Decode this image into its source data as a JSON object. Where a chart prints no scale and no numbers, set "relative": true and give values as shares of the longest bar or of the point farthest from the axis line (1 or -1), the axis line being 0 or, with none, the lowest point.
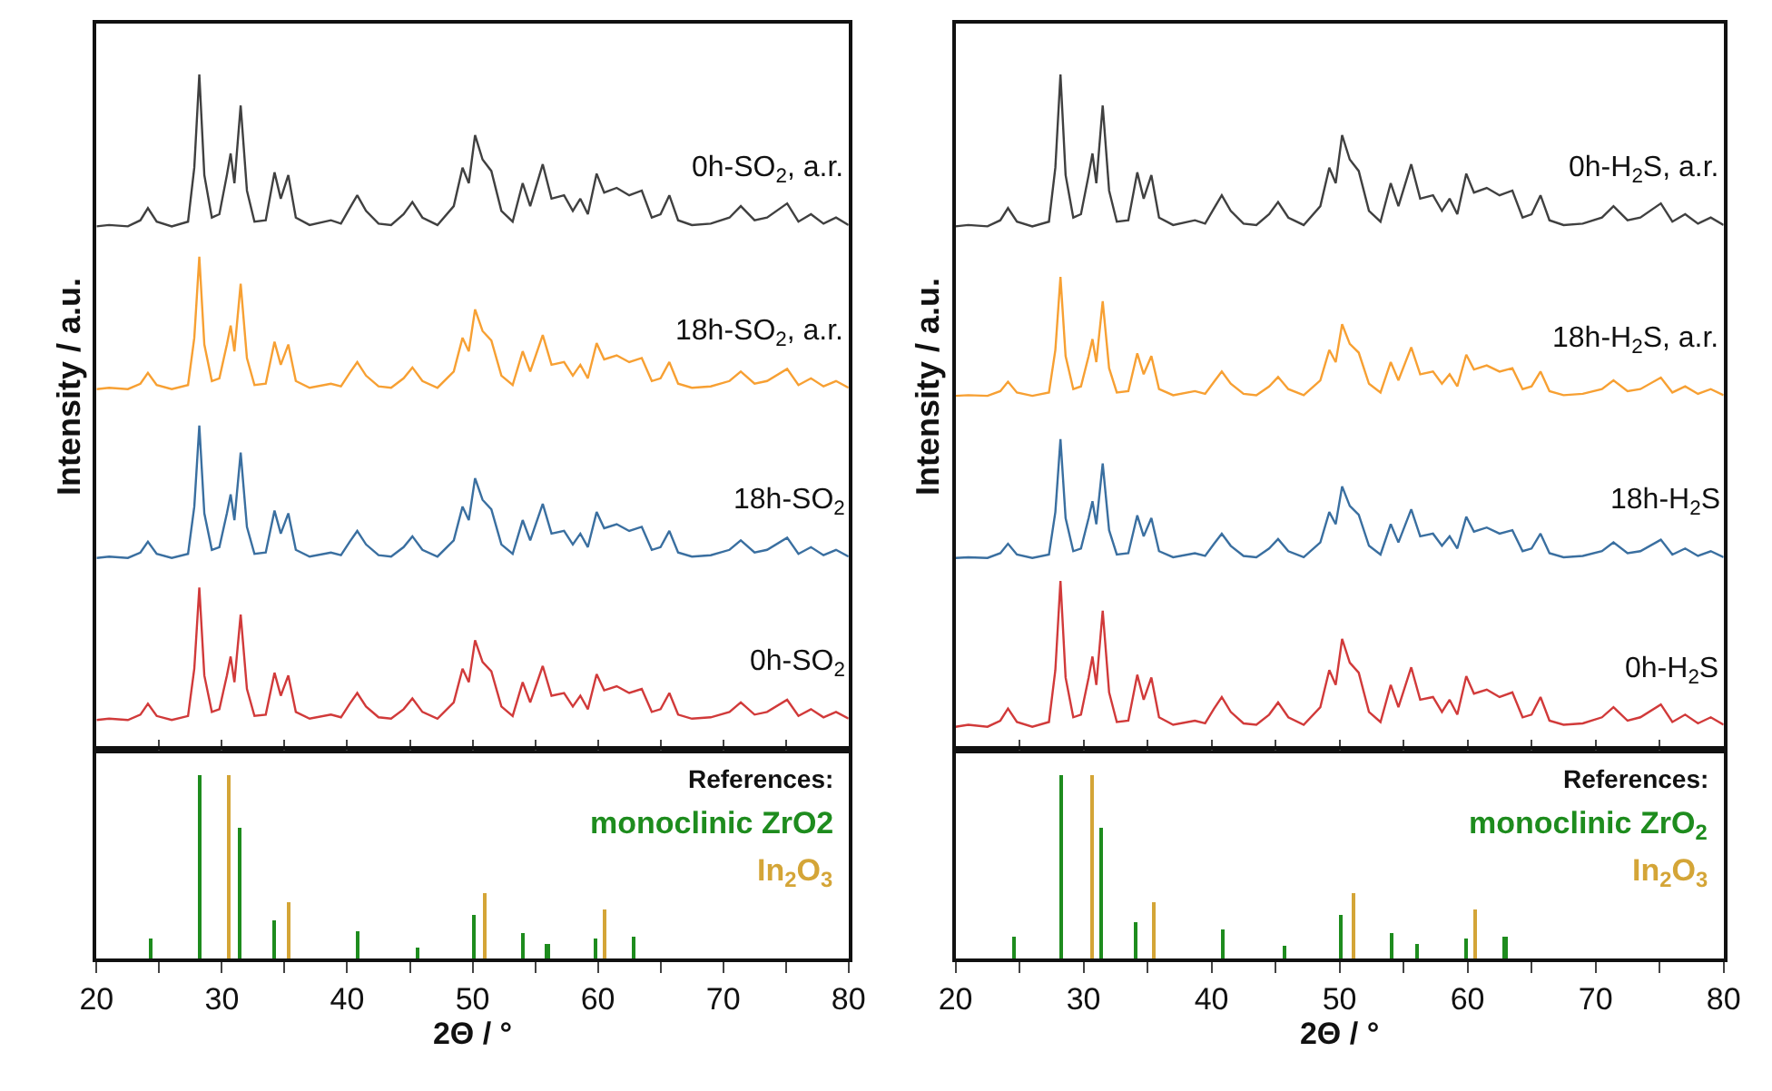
{
  "chart_data": [
    {
      "type": "line",
      "relative": true,
      "ylabel": "Intensity / a.u.",
      "tick_labels": false,
      "xlim": [
        20,
        80
      ],
      "xticks": [
        20,
        {
          "value": 25,
          "label": null
        },
        30,
        {
          "value": 35,
          "label": null
        },
        40,
        {
          "value": 45,
          "label": null
        },
        50,
        {
          "value": 55,
          "label": null
        },
        60,
        {
          "value": 65,
          "label": null
        },
        70,
        {
          "value": 75,
          "label": null
        },
        80
      ],
      "x": [
        20,
        21,
        22.5,
        23.5,
        24.1,
        24.8,
        26,
        27.3,
        27.8,
        28.2,
        28.6,
        29.2,
        29.8,
        30.4,
        30.7,
        31.0,
        31.5,
        32.0,
        32.6,
        33.5,
        34.2,
        34.7,
        35.3,
        35.9,
        37,
        38.7,
        39.5,
        40.2,
        40.8,
        41.5,
        42.5,
        43.5,
        44.5,
        45.2,
        46,
        47.2,
        48.5,
        49.2,
        49.7,
        50.2,
        50.8,
        51.5,
        52.3,
        53.2,
        54.0,
        54.6,
        55.6,
        56.3,
        57.3,
        58,
        58.6,
        59.2,
        59.9,
        60.5,
        61.5,
        62.5,
        63.5,
        64.3,
        65.0,
        65.7,
        66.4,
        67.5,
        69,
        70.5,
        71.4,
        72.5,
        73.5,
        75.1,
        76,
        77,
        78,
        79,
        80
      ],
      "series": [
        {
          "name": "0h-SO$_{2}$, a.r.",
          "color": "#404040",
          "values": [
            0.775,
            0.777,
            0.775,
            0.784,
            0.802,
            0.782,
            0.775,
            0.782,
            0.862,
            1.0,
            0.851,
            0.788,
            0.793,
            0.851,
            0.883,
            0.839,
            0.954,
            0.828,
            0.782,
            0.784,
            0.855,
            0.816,
            0.851,
            0.788,
            0.777,
            0.784,
            0.779,
            0.802,
            0.821,
            0.798,
            0.779,
            0.777,
            0.793,
            0.811,
            0.788,
            0.777,
            0.805,
            0.862,
            0.839,
            0.91,
            0.874,
            0.857,
            0.798,
            0.782,
            0.839,
            0.805,
            0.867,
            0.816,
            0.821,
            0.798,
            0.816,
            0.793,
            0.853,
            0.825,
            0.832,
            0.821,
            0.828,
            0.788,
            0.793,
            0.821,
            0.784,
            0.777,
            0.779,
            0.788,
            0.805,
            0.784,
            0.788,
            0.809,
            0.782,
            0.793,
            0.779,
            0.788,
            0.777
          ]
        },
        {
          "name": "18h-SO$_{2}$, a.r.",
          "color": "#f7a033",
          "values": [
            0.534,
            0.536,
            0.534,
            0.542,
            0.558,
            0.54,
            0.534,
            0.54,
            0.61,
            0.73,
            0.6,
            0.546,
            0.55,
            0.6,
            0.628,
            0.59,
            0.69,
            0.58,
            0.54,
            0.542,
            0.604,
            0.57,
            0.6,
            0.546,
            0.536,
            0.542,
            0.538,
            0.558,
            0.574,
            0.554,
            0.538,
            0.536,
            0.55,
            0.566,
            0.546,
            0.536,
            0.56,
            0.61,
            0.59,
            0.652,
            0.62,
            0.606,
            0.554,
            0.54,
            0.59,
            0.56,
            0.614,
            0.57,
            0.574,
            0.554,
            0.57,
            0.55,
            0.602,
            0.578,
            0.584,
            0.574,
            0.58,
            0.546,
            0.55,
            0.574,
            0.542,
            0.536,
            0.538,
            0.546,
            0.56,
            0.542,
            0.546,
            0.564,
            0.54,
            0.55,
            0.538,
            0.546,
            0.536
          ]
        },
        {
          "name": "18h-SO$_{2}$",
          "color": "#3a6fa0",
          "values": [
            0.284,
            0.286,
            0.284,
            0.292,
            0.308,
            0.29,
            0.284,
            0.29,
            0.36,
            0.48,
            0.35,
            0.296,
            0.3,
            0.35,
            0.378,
            0.34,
            0.44,
            0.33,
            0.29,
            0.292,
            0.354,
            0.32,
            0.35,
            0.296,
            0.286,
            0.292,
            0.288,
            0.308,
            0.324,
            0.304,
            0.288,
            0.286,
            0.3,
            0.316,
            0.296,
            0.286,
            0.31,
            0.36,
            0.34,
            0.402,
            0.37,
            0.356,
            0.304,
            0.29,
            0.34,
            0.31,
            0.364,
            0.32,
            0.324,
            0.304,
            0.32,
            0.3,
            0.352,
            0.328,
            0.334,
            0.324,
            0.33,
            0.296,
            0.3,
            0.324,
            0.292,
            0.286,
            0.288,
            0.296,
            0.31,
            0.292,
            0.296,
            0.314,
            0.29,
            0.3,
            0.288,
            0.296,
            0.286
          ]
        },
        {
          "name": "0h-SO$_{2}$",
          "color": "#d13a3a",
          "values": [
            0.044,
            0.046,
            0.044,
            0.052,
            0.068,
            0.05,
            0.044,
            0.05,
            0.12,
            0.24,
            0.11,
            0.056,
            0.06,
            0.11,
            0.138,
            0.1,
            0.2,
            0.09,
            0.05,
            0.052,
            0.114,
            0.08,
            0.11,
            0.056,
            0.046,
            0.052,
            0.048,
            0.068,
            0.084,
            0.064,
            0.048,
            0.046,
            0.06,
            0.076,
            0.056,
            0.046,
            0.07,
            0.12,
            0.1,
            0.162,
            0.13,
            0.116,
            0.064,
            0.05,
            0.1,
            0.07,
            0.124,
            0.08,
            0.084,
            0.064,
            0.08,
            0.06,
            0.112,
            0.088,
            0.094,
            0.084,
            0.09,
            0.056,
            0.06,
            0.084,
            0.052,
            0.046,
            0.048,
            0.056,
            0.07,
            0.052,
            0.056,
            0.074,
            0.05,
            0.06,
            0.048,
            0.056,
            0.046
          ]
        }
      ]
    },
    {
      "type": "bar",
      "relative": true,
      "xlabel": "2Θ / °",
      "tick_labels": "x",
      "legend_title": "References:",
      "xlim": [
        20,
        80
      ],
      "xticks": [
        20,
        {
          "value": 25,
          "label": null
        },
        30,
        {
          "value": 35,
          "label": null
        },
        40,
        {
          "value": 45,
          "label": null
        },
        50,
        {
          "value": 55,
          "label": null
        },
        60,
        {
          "value": 65,
          "label": null
        },
        70,
        {
          "value": 75,
          "label": null
        },
        80
      ],
      "series": [
        {
          "name": "monoclinic ZrO2",
          "color": "#1e8c1e",
          "x": [
            24.4,
            28.2,
            31.5,
            34.2,
            40.8,
            45.6,
            50.1,
            54.1,
            56.0,
            59.8,
            62.9
          ],
          "values": [
            0.11,
            1.0,
            0.71,
            0.21,
            0.15,
            0.06,
            0.24,
            0.14,
            0.08,
            0.11,
            0.12
          ]
        },
        {
          "name": "In$_{2}$O$_{3}$",
          "color": "#d4a537",
          "x": [
            30.6,
            35.4,
            51.0,
            60.6
          ],
          "values": [
            1.0,
            0.31,
            0.36,
            0.27
          ]
        }
      ]
    },
    {
      "type": "line",
      "relative": true,
      "ylabel": "Intensity / a.u.",
      "tick_labels": false,
      "xlim": [
        20,
        80
      ],
      "xticks": [
        20,
        {
          "value": 25,
          "label": null
        },
        30,
        {
          "value": 35,
          "label": null
        },
        40,
        {
          "value": 45,
          "label": null
        },
        50,
        {
          "value": 55,
          "label": null
        },
        60,
        {
          "value": 65,
          "label": null
        },
        70,
        {
          "value": 75,
          "label": null
        },
        80
      ],
      "x": [
        20,
        21,
        22.5,
        23.5,
        24.1,
        24.8,
        26,
        27.3,
        27.8,
        28.2,
        28.6,
        29.2,
        29.8,
        30.4,
        30.7,
        31.0,
        31.5,
        32.0,
        32.6,
        33.5,
        34.2,
        34.7,
        35.3,
        35.9,
        37,
        38.7,
        39.5,
        40.2,
        40.8,
        41.5,
        42.5,
        43.5,
        44.5,
        45.2,
        46,
        47.2,
        48.5,
        49.2,
        49.7,
        50.2,
        50.8,
        51.5,
        52.3,
        53.2,
        54.0,
        54.6,
        55.6,
        56.3,
        57.3,
        58,
        58.6,
        59.2,
        59.9,
        60.5,
        61.5,
        62.5,
        63.5,
        64.3,
        65.0,
        65.7,
        66.4,
        67.5,
        69,
        70.5,
        71.4,
        72.5,
        73.5,
        75.1,
        76,
        77,
        78,
        79,
        80
      ],
      "series": [
        {
          "name": "0h-H$_{2}$S, a.r.",
          "color": "#404040",
          "values": [
            0.775,
            0.777,
            0.775,
            0.784,
            0.802,
            0.782,
            0.775,
            0.782,
            0.862,
            1.0,
            0.851,
            0.788,
            0.793,
            0.851,
            0.883,
            0.839,
            0.954,
            0.828,
            0.782,
            0.784,
            0.855,
            0.816,
            0.851,
            0.788,
            0.777,
            0.784,
            0.779,
            0.802,
            0.821,
            0.798,
            0.779,
            0.777,
            0.793,
            0.811,
            0.788,
            0.777,
            0.805,
            0.862,
            0.839,
            0.91,
            0.874,
            0.857,
            0.798,
            0.782,
            0.839,
            0.805,
            0.867,
            0.816,
            0.821,
            0.798,
            0.816,
            0.793,
            0.853,
            0.825,
            0.832,
            0.821,
            0.828,
            0.788,
            0.793,
            0.821,
            0.784,
            0.777,
            0.779,
            0.788,
            0.805,
            0.784,
            0.788,
            0.809,
            0.782,
            0.793,
            0.779,
            0.788,
            0.777
          ]
        },
        {
          "name": "18h-H$_{2}$S, a.r.",
          "color": "#f7a033",
          "values": [
            0.524,
            0.525,
            0.524,
            0.531,
            0.545,
            0.529,
            0.524,
            0.529,
            0.592,
            0.7,
            0.583,
            0.534,
            0.538,
            0.583,
            0.608,
            0.574,
            0.664,
            0.565,
            0.529,
            0.531,
            0.587,
            0.556,
            0.583,
            0.534,
            0.525,
            0.531,
            0.527,
            0.545,
            0.56,
            0.542,
            0.527,
            0.525,
            0.538,
            0.552,
            0.534,
            0.525,
            0.547,
            0.592,
            0.574,
            0.63,
            0.601,
            0.588,
            0.542,
            0.529,
            0.574,
            0.547,
            0.596,
            0.556,
            0.56,
            0.542,
            0.556,
            0.538,
            0.585,
            0.563,
            0.569,
            0.56,
            0.565,
            0.534,
            0.538,
            0.56,
            0.531,
            0.525,
            0.527,
            0.534,
            0.547,
            0.531,
            0.534,
            0.551,
            0.529,
            0.538,
            0.527,
            0.534,
            0.525
          ]
        },
        {
          "name": "18h-H$_{2}$S",
          "color": "#3a6fa0",
          "values": [
            0.284,
            0.285,
            0.284,
            0.291,
            0.305,
            0.289,
            0.284,
            0.289,
            0.352,
            0.46,
            0.343,
            0.294,
            0.298,
            0.343,
            0.368,
            0.334,
            0.424,
            0.325,
            0.289,
            0.291,
            0.347,
            0.316,
            0.343,
            0.294,
            0.285,
            0.291,
            0.287,
            0.305,
            0.32,
            0.302,
            0.287,
            0.285,
            0.298,
            0.312,
            0.294,
            0.285,
            0.307,
            0.352,
            0.334,
            0.39,
            0.361,
            0.348,
            0.302,
            0.289,
            0.334,
            0.307,
            0.356,
            0.316,
            0.32,
            0.302,
            0.316,
            0.298,
            0.345,
            0.323,
            0.329,
            0.32,
            0.325,
            0.294,
            0.298,
            0.32,
            0.291,
            0.285,
            0.287,
            0.294,
            0.307,
            0.291,
            0.294,
            0.311,
            0.289,
            0.298,
            0.287,
            0.294,
            0.285
          ]
        },
        {
          "name": "0h-H$_{2}$S",
          "color": "#d13a3a",
          "values": [
            0.034,
            0.037,
            0.034,
            0.043,
            0.061,
            0.041,
            0.034,
            0.041,
            0.118,
            0.25,
            0.107,
            0.048,
            0.052,
            0.107,
            0.138,
            0.096,
            0.206,
            0.085,
            0.041,
            0.043,
            0.111,
            0.074,
            0.107,
            0.048,
            0.037,
            0.043,
            0.039,
            0.061,
            0.078,
            0.056,
            0.039,
            0.037,
            0.052,
            0.07,
            0.048,
            0.037,
            0.063,
            0.118,
            0.096,
            0.164,
            0.129,
            0.114,
            0.056,
            0.041,
            0.096,
            0.063,
            0.122,
            0.074,
            0.078,
            0.056,
            0.074,
            0.052,
            0.109,
            0.083,
            0.089,
            0.078,
            0.085,
            0.048,
            0.052,
            0.078,
            0.043,
            0.037,
            0.039,
            0.048,
            0.063,
            0.043,
            0.048,
            0.067,
            0.041,
            0.052,
            0.039,
            0.048,
            0.037
          ]
        }
      ]
    },
    {
      "type": "bar",
      "relative": true,
      "xlabel": "2Θ / °",
      "tick_labels": "x",
      "legend_title": "References:",
      "xlim": [
        20,
        80
      ],
      "xticks": [
        20,
        {
          "value": 25,
          "label": null
        },
        30,
        {
          "value": 35,
          "label": null
        },
        40,
        {
          "value": 45,
          "label": null
        },
        50,
        {
          "value": 55,
          "label": null
        },
        60,
        {
          "value": 65,
          "label": null
        },
        70,
        {
          "value": 75,
          "label": null
        },
        80
      ],
      "series": [
        {
          "name": "monoclinic ZrO$_{2}$",
          "color": "#1e8c1e",
          "x": [
            24.5,
            28.2,
            31.4,
            34.1,
            40.8,
            45.7,
            50.1,
            54.1,
            56.0,
            59.8,
            62.9
          ],
          "values": [
            0.12,
            1.0,
            0.71,
            0.2,
            0.16,
            0.07,
            0.24,
            0.14,
            0.08,
            0.11,
            0.12
          ]
        },
        {
          "name": "In$_{2}$O$_{3}$",
          "color": "#d4a537",
          "x": [
            30.6,
            35.4,
            51.0,
            60.6
          ],
          "values": [
            1.0,
            0.31,
            0.36,
            0.27
          ]
        }
      ]
    }
  ]
}
